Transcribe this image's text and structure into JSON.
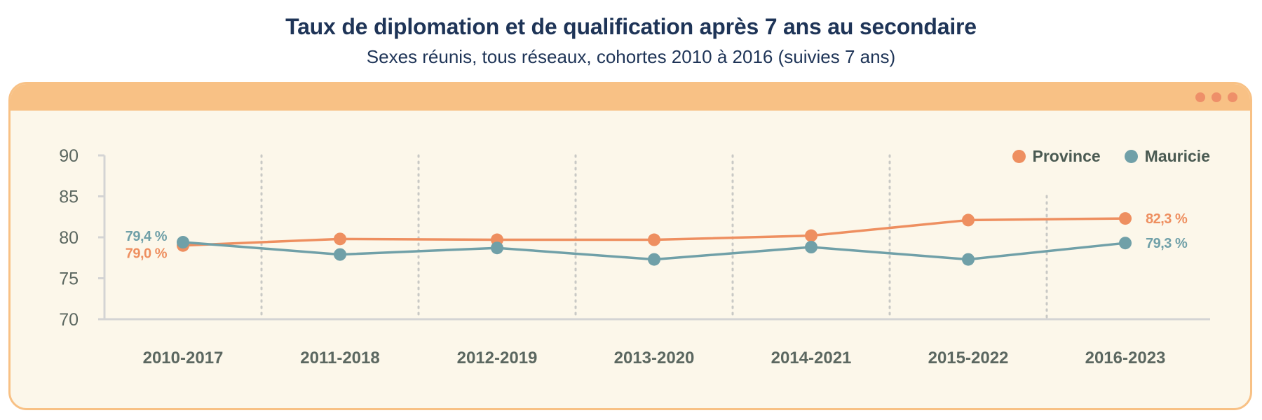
{
  "header": {
    "title": "Taux de diplomation et de qualification après 7 ans au secondaire",
    "subtitle": "Sexes réunis, tous réseaux, cohortes 2010 à 2016 (suivies 7 ans)"
  },
  "colors": {
    "province": "#ee8f60",
    "mauricie": "#70a0a8",
    "axis": "#d4d4d4",
    "tick_text": "#5b6760",
    "gridline": "#c9c9c5"
  },
  "chart_data": {
    "type": "line",
    "title": "Taux de diplomation et de qualification après 7 ans au secondaire",
    "subtitle": "Sexes réunis, tous réseaux, cohortes 2010 à 2016 (suivies 7 ans)",
    "categories": [
      "2010-2017",
      "2011-2018",
      "2012-2019",
      "2013-2020",
      "2014-2021",
      "2015-2022",
      "2016-2023"
    ],
    "ylim": [
      70,
      90
    ],
    "yticks": [
      "70",
      "75",
      "80",
      "85",
      "90"
    ],
    "xlabel": "",
    "ylabel": "",
    "legend_position": "top-right",
    "series": [
      {
        "name": "Province",
        "values": [
          79.0,
          79.8,
          79.7,
          79.7,
          80.2,
          82.1,
          82.3
        ],
        "labels": {
          "first": "79,0 %",
          "last": "82,3 %"
        }
      },
      {
        "name": "Mauricie",
        "values": [
          79.4,
          77.9,
          78.7,
          77.3,
          78.8,
          77.3,
          79.3
        ],
        "labels": {
          "first": "79,4 %",
          "last": "79,3 %"
        }
      }
    ]
  }
}
